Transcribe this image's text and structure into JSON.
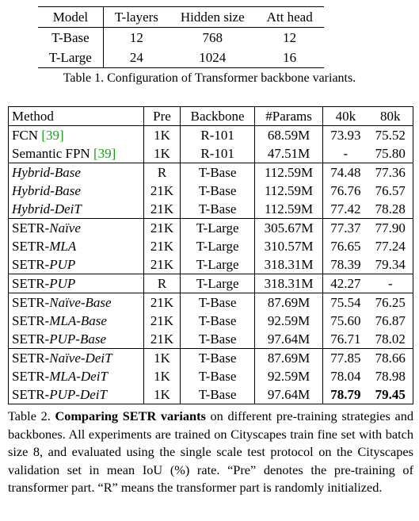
{
  "table1": {
    "header": [
      "Model",
      "T-layers",
      "Hidden size",
      "Att head"
    ],
    "rows": [
      [
        "T-Base",
        "12",
        "768",
        "12"
      ],
      [
        "T-Large",
        "24",
        "1024",
        "16"
      ]
    ],
    "caption": "Table 1. Configuration of Transformer backbone variants."
  },
  "table2": {
    "header": [
      "Method",
      "Pre",
      "Backbone",
      "#Params",
      "40k",
      "80k"
    ],
    "groups": [
      [
        {
          "method": [
            {
              "text": "FCN "
            },
            {
              "text": "[39]",
              "style": "cite"
            }
          ],
          "cells": [
            "1K",
            "R-101",
            "68.59M",
            "73.93",
            "75.52"
          ]
        },
        {
          "method": [
            {
              "text": "Semantic FPN "
            },
            {
              "text": "[39]",
              "style": "cite"
            }
          ],
          "cells": [
            "1K",
            "R-101",
            "47.51M",
            "-",
            "75.80"
          ]
        }
      ],
      [
        {
          "method": [
            {
              "text": "Hybrid-Base",
              "style": "italic"
            }
          ],
          "cells": [
            "R",
            "T-Base",
            "112.59M",
            "74.48",
            "77.36"
          ]
        },
        {
          "method": [
            {
              "text": "Hybrid-Base",
              "style": "italic"
            }
          ],
          "cells": [
            "21K",
            "T-Base",
            "112.59M",
            "76.76",
            "76.57"
          ]
        },
        {
          "method": [
            {
              "text": "Hybrid-DeiT",
              "style": "italic"
            }
          ],
          "cells": [
            "21K",
            "T-Base",
            "112.59M",
            "77.42",
            "78.28"
          ]
        }
      ],
      [
        {
          "method": [
            {
              "text": "SETR-"
            },
            {
              "text": "Naïve",
              "style": "italic"
            }
          ],
          "cells": [
            "21K",
            "T-Large",
            "305.67M",
            "77.37",
            "77.90"
          ]
        },
        {
          "method": [
            {
              "text": "SETR-"
            },
            {
              "text": "MLA",
              "style": "italic"
            }
          ],
          "cells": [
            "21K",
            "T-Large",
            "310.57M",
            "76.65",
            "77.24"
          ]
        },
        {
          "method": [
            {
              "text": "SETR-"
            },
            {
              "text": "PUP",
              "style": "italic"
            }
          ],
          "cells": [
            "21K",
            "T-Large",
            "318.31M",
            "78.39",
            "79.34"
          ]
        }
      ],
      [
        {
          "method": [
            {
              "text": "SETR-"
            },
            {
              "text": "PUP",
              "style": "italic"
            }
          ],
          "cells": [
            "R",
            "T-Large",
            "318.31M",
            "42.27",
            "-"
          ]
        }
      ],
      [
        {
          "method": [
            {
              "text": "SETR-"
            },
            {
              "text": "Naïve-Base",
              "style": "italic"
            }
          ],
          "cells": [
            "21K",
            "T-Base",
            "87.69M",
            "75.54",
            "76.25"
          ]
        },
        {
          "method": [
            {
              "text": "SETR-"
            },
            {
              "text": "MLA-Base",
              "style": "italic"
            }
          ],
          "cells": [
            "21K",
            "T-Base",
            "92.59M",
            "75.60",
            "76.87"
          ]
        },
        {
          "method": [
            {
              "text": "SETR-"
            },
            {
              "text": "PUP-Base",
              "style": "italic"
            }
          ],
          "cells": [
            "21K",
            "T-Base",
            "97.64M",
            "76.71",
            "78.02"
          ]
        }
      ],
      [
        {
          "method": [
            {
              "text": "SETR-"
            },
            {
              "text": "Naïve-DeiT",
              "style": "italic"
            }
          ],
          "cells": [
            "1K",
            "T-Base",
            "87.69M",
            "77.85",
            "78.66"
          ]
        },
        {
          "method": [
            {
              "text": "SETR-"
            },
            {
              "text": "MLA-DeiT",
              "style": "italic"
            }
          ],
          "cells": [
            "1K",
            "T-Base",
            "92.59M",
            "78.04",
            "78.98"
          ]
        },
        {
          "method": [
            {
              "text": "SETR-"
            },
            {
              "text": "PUP-DeiT",
              "style": "italic"
            }
          ],
          "cells": [
            "1K",
            "T-Base",
            "97.64M",
            {
              "text": "78.79",
              "bold": true
            },
            {
              "text": "79.45",
              "bold": true
            }
          ]
        }
      ]
    ],
    "caption": [
      {
        "text": "Table 2. "
      },
      {
        "text": "Comparing SETR variants",
        "style": "bold"
      },
      {
        "text": " on different pre-training strategies and backbones.  All experiments are trained on Cityscapes train fine set with batch size 8, and evaluated using the single scale test protocol on the Cityscapes validation set in mean IoU (%) rate. “Pre” denotes the pre-training of transformer part. “R” means the transformer part is randomly initialized."
      }
    ]
  }
}
